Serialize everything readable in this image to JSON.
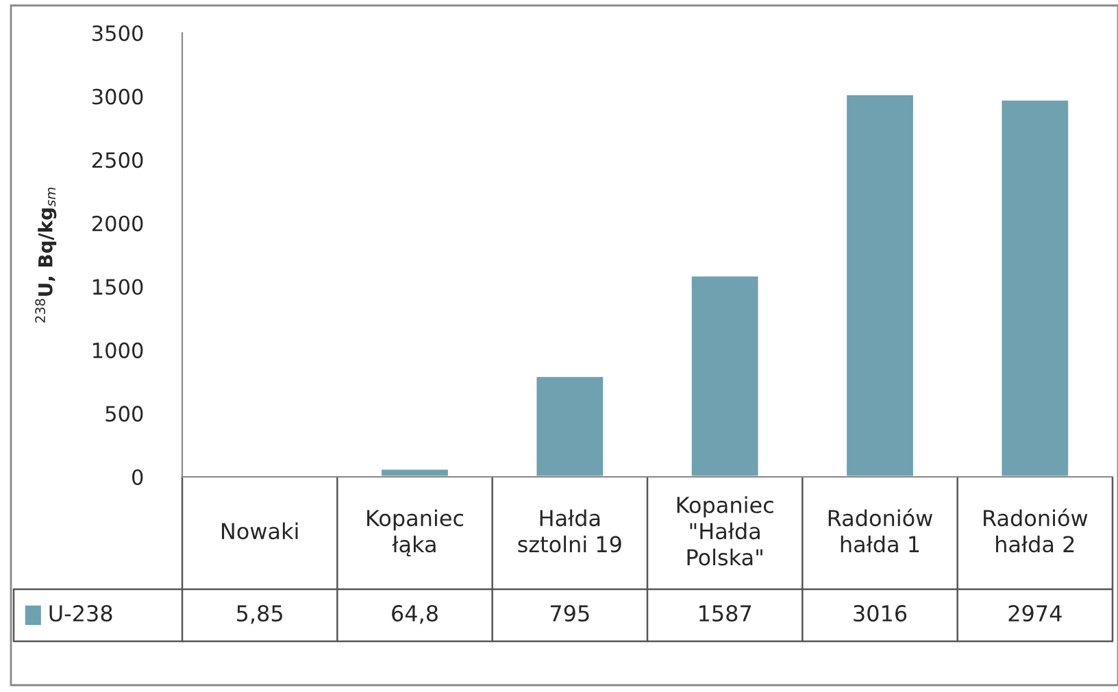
{
  "chart_data": {
    "type": "bar",
    "ylabel": "$^{238}$U, Bq/kg$_{sm}$",
    "categories": [
      "Nowaki",
      "Kopaniec\nłąka",
      "Hałda\nsztolni 19",
      "Kopaniec\n\"Hałda\nPolska\"",
      "Radoniów\nhałda 1",
      "Radoniów\nhałda 2"
    ],
    "series": [
      {
        "name": "U-238",
        "color": "#6fa1b0",
        "values": [
          5.85,
          64.8,
          795,
          1587,
          3016,
          2974
        ],
        "value_labels": [
          "5,85",
          "64,8",
          "795",
          "1587",
          "3016",
          "2974"
        ]
      }
    ],
    "ylim": [
      0,
      3500
    ],
    "yticks": [
      0,
      500,
      1000,
      1500,
      2000,
      2500,
      3000,
      3500
    ],
    "grid": false,
    "legend": "bottom"
  }
}
